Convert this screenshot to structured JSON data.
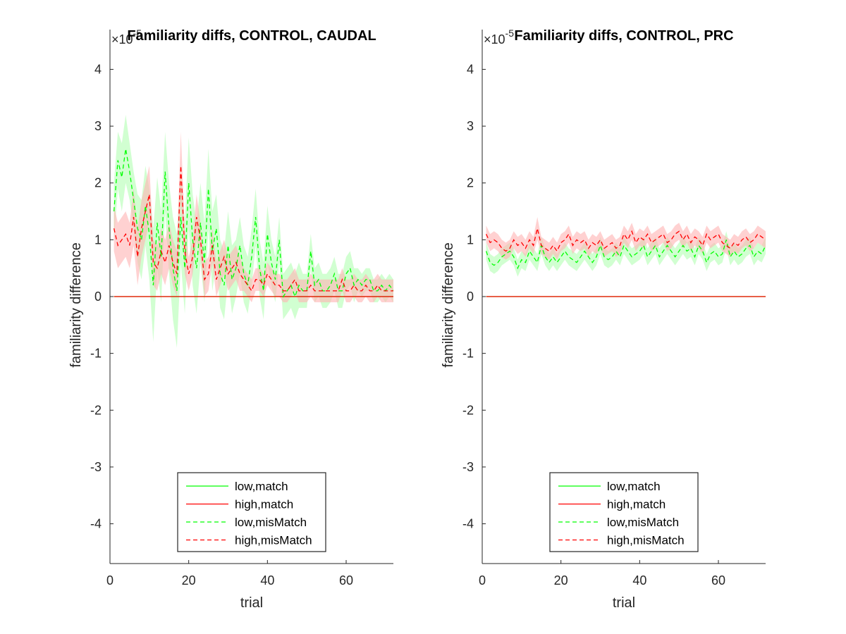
{
  "chart_data": [
    {
      "type": "line",
      "title": "Familiarity diffs, CONTROL, CAUDAL",
      "xlabel": "trial",
      "ylabel": "familiarity difference",
      "y_exponent_label": "×10",
      "y_exponent": "-5",
      "xlim": [
        0,
        72
      ],
      "ylim": [
        -4.7,
        4.7
      ],
      "x_ticks": [
        0,
        20,
        40,
        60
      ],
      "y_ticks": [
        -4,
        -3,
        -2,
        -1,
        0,
        1,
        2,
        3,
        4
      ],
      "grid": false,
      "legend_position": "bottom-center",
      "x": [
        1,
        2,
        3,
        4,
        5,
        6,
        7,
        8,
        9,
        10,
        11,
        12,
        13,
        14,
        15,
        16,
        17,
        18,
        19,
        20,
        21,
        22,
        23,
        24,
        25,
        26,
        27,
        28,
        29,
        30,
        31,
        32,
        33,
        34,
        35,
        36,
        37,
        38,
        39,
        40,
        41,
        42,
        43,
        44,
        45,
        46,
        47,
        48,
        49,
        50,
        51,
        52,
        53,
        54,
        55,
        56,
        57,
        58,
        59,
        60,
        61,
        62,
        63,
        64,
        65,
        66,
        67,
        68,
        69,
        70,
        71,
        72
      ],
      "series": [
        {
          "name": "low,match",
          "color": "#00ff00",
          "dash": "solid",
          "values": [
            0,
            0,
            0,
            0,
            0,
            0,
            0,
            0,
            0,
            0,
            0,
            0,
            0,
            0,
            0,
            0,
            0,
            0,
            0,
            0,
            0,
            0,
            0,
            0,
            0,
            0,
            0,
            0,
            0,
            0,
            0,
            0,
            0,
            0,
            0,
            0,
            0,
            0,
            0,
            0,
            0,
            0,
            0,
            0,
            0,
            0,
            0,
            0,
            0,
            0,
            0,
            0,
            0,
            0,
            0,
            0,
            0,
            0,
            0,
            0,
            0,
            0,
            0,
            0,
            0,
            0,
            0,
            0,
            0,
            0,
            0,
            0
          ]
        },
        {
          "name": "high,match",
          "color": "#ff0000",
          "dash": "solid",
          "values": [
            0,
            0,
            0,
            0,
            0,
            0,
            0,
            0,
            0,
            0,
            0,
            0,
            0,
            0,
            0,
            0,
            0,
            0,
            0,
            0,
            0,
            0,
            0,
            0,
            0,
            0,
            0,
            0,
            0,
            0,
            0,
            0,
            0,
            0,
            0,
            0,
            0,
            0,
            0,
            0,
            0,
            0,
            0,
            0,
            0,
            0,
            0,
            0,
            0,
            0,
            0,
            0,
            0,
            0,
            0,
            0,
            0,
            0,
            0,
            0,
            0,
            0,
            0,
            0,
            0,
            0,
            0,
            0,
            0,
            0,
            0,
            0
          ]
        },
        {
          "name": "low,misMatch",
          "color": "#00ff00",
          "dash": "dashed",
          "band_color": "#b3ffb3",
          "values": [
            1.5,
            2.4,
            2.1,
            2.6,
            2.2,
            1.7,
            1.2,
            1.0,
            1.6,
            1.1,
            0.2,
            1.3,
            0.7,
            2.2,
            1.2,
            0.5,
            0.1,
            1.4,
            0.5,
            2.0,
            1.0,
            0.5,
            1.3,
            0.6,
            1.9,
            0.8,
            1.2,
            0.4,
            0.2,
            0.9,
            0.3,
            0.5,
            0.9,
            0.4,
            0.2,
            0.7,
            1.4,
            0.5,
            0.1,
            1.1,
            0.6,
            0.3,
            1.0,
            0.0,
            0.1,
            0.2,
            0.0,
            0.2,
            0.1,
            0.1,
            0.8,
            0.2,
            0.3,
            0.1,
            0.1,
            0.2,
            0.4,
            0.1,
            0.1,
            0.4,
            0.5,
            0.2,
            0.3,
            0.2,
            0.3,
            0.3,
            0.1,
            0.1,
            0.2,
            0.1,
            0.2,
            0.1
          ],
          "band": [
            0.5,
            0.5,
            0.6,
            0.6,
            0.5,
            0.5,
            0.6,
            0.7,
            0.7,
            0.8,
            1.0,
            0.8,
            0.8,
            0.7,
            0.8,
            0.9,
            1.0,
            0.8,
            0.8,
            0.8,
            0.8,
            0.8,
            0.7,
            0.7,
            0.7,
            0.7,
            0.6,
            0.6,
            0.6,
            0.6,
            0.6,
            0.5,
            0.5,
            0.5,
            0.5,
            0.5,
            0.5,
            0.5,
            0.5,
            0.5,
            0.4,
            0.4,
            0.4,
            0.4,
            0.4,
            0.4,
            0.4,
            0.4,
            0.3,
            0.3,
            0.3,
            0.3,
            0.3,
            0.3,
            0.3,
            0.3,
            0.3,
            0.3,
            0.3,
            0.3,
            0.3,
            0.3,
            0.2,
            0.2,
            0.2,
            0.2,
            0.2,
            0.2,
            0.2,
            0.2,
            0.2,
            0.2
          ]
        },
        {
          "name": "high,misMatch",
          "color": "#ff0000",
          "dash": "dashed",
          "band_color": "#ffb3b3",
          "values": [
            1.2,
            0.9,
            1.0,
            1.1,
            0.9,
            1.4,
            0.7,
            1.2,
            1.5,
            1.8,
            0.6,
            0.5,
            0.8,
            0.6,
            0.9,
            0.6,
            0.4,
            2.3,
            0.8,
            0.4,
            0.7,
            1.4,
            1.0,
            0.3,
            0.4,
            0.9,
            0.3,
            0.5,
            0.7,
            0.4,
            0.5,
            0.6,
            0.4,
            0.3,
            0.2,
            0.1,
            0.3,
            0.3,
            0.2,
            0.4,
            0.3,
            0.2,
            0.2,
            0.1,
            0.1,
            0.2,
            0.3,
            0.1,
            0.1,
            0.1,
            0.2,
            0.1,
            0.1,
            0.1,
            0.1,
            0.1,
            0.1,
            0.1,
            0.3,
            0.1,
            0.1,
            0.2,
            0.1,
            0.1,
            0.2,
            0.1,
            0.1,
            0.2,
            0.1,
            0.1,
            0.1,
            0.1
          ],
          "band": [
            0.4,
            0.4,
            0.4,
            0.4,
            0.4,
            0.5,
            0.5,
            0.5,
            0.5,
            0.5,
            0.4,
            0.4,
            0.4,
            0.4,
            0.4,
            0.4,
            0.4,
            0.6,
            0.4,
            0.3,
            0.3,
            0.4,
            0.3,
            0.3,
            0.3,
            0.3,
            0.3,
            0.3,
            0.3,
            0.3,
            0.3,
            0.3,
            0.3,
            0.2,
            0.2,
            0.2,
            0.2,
            0.2,
            0.2,
            0.2,
            0.2,
            0.2,
            0.2,
            0.2,
            0.2,
            0.2,
            0.2,
            0.2,
            0.2,
            0.2,
            0.2,
            0.2,
            0.2,
            0.2,
            0.2,
            0.2,
            0.2,
            0.2,
            0.2,
            0.2,
            0.2,
            0.2,
            0.2,
            0.2,
            0.2,
            0.2,
            0.2,
            0.2,
            0.2,
            0.2,
            0.2,
            0.2
          ]
        }
      ]
    },
    {
      "type": "line",
      "title": "Familiarity diffs, CONTROL, PRC",
      "xlabel": "trial",
      "ylabel": "familiarity difference",
      "y_exponent_label": "×10",
      "y_exponent": "-5",
      "xlim": [
        0,
        72
      ],
      "ylim": [
        -4.7,
        4.7
      ],
      "x_ticks": [
        0,
        20,
        40,
        60
      ],
      "y_ticks": [
        -4,
        -3,
        -2,
        -1,
        0,
        1,
        2,
        3,
        4
      ],
      "grid": false,
      "legend_position": "bottom-center",
      "x": [
        1,
        2,
        3,
        4,
        5,
        6,
        7,
        8,
        9,
        10,
        11,
        12,
        13,
        14,
        15,
        16,
        17,
        18,
        19,
        20,
        21,
        22,
        23,
        24,
        25,
        26,
        27,
        28,
        29,
        30,
        31,
        32,
        33,
        34,
        35,
        36,
        37,
        38,
        39,
        40,
        41,
        42,
        43,
        44,
        45,
        46,
        47,
        48,
        49,
        50,
        51,
        52,
        53,
        54,
        55,
        56,
        57,
        58,
        59,
        60,
        61,
        62,
        63,
        64,
        65,
        66,
        67,
        68,
        69,
        70,
        71,
        72
      ],
      "series": [
        {
          "name": "low,match",
          "color": "#00ff00",
          "dash": "solid",
          "values": [
            0,
            0,
            0,
            0,
            0,
            0,
            0,
            0,
            0,
            0,
            0,
            0,
            0,
            0,
            0,
            0,
            0,
            0,
            0,
            0,
            0,
            0,
            0,
            0,
            0,
            0,
            0,
            0,
            0,
            0,
            0,
            0,
            0,
            0,
            0,
            0,
            0,
            0,
            0,
            0,
            0,
            0,
            0,
            0,
            0,
            0,
            0,
            0,
            0,
            0,
            0,
            0,
            0,
            0,
            0,
            0,
            0,
            0,
            0,
            0,
            0,
            0,
            0,
            0,
            0,
            0,
            0,
            0,
            0,
            0,
            0,
            0
          ]
        },
        {
          "name": "high,match",
          "color": "#ff0000",
          "dash": "solid",
          "values": [
            0,
            0,
            0,
            0,
            0,
            0,
            0,
            0,
            0,
            0,
            0,
            0,
            0,
            0,
            0,
            0,
            0,
            0,
            0,
            0,
            0,
            0,
            0,
            0,
            0,
            0,
            0,
            0,
            0,
            0,
            0,
            0,
            0,
            0,
            0,
            0,
            0,
            0,
            0,
            0,
            0,
            0,
            0,
            0,
            0,
            0,
            0,
            0,
            0,
            0,
            0,
            0,
            0,
            0,
            0,
            0,
            0,
            0,
            0,
            0,
            0,
            0,
            0,
            0,
            0,
            0,
            0,
            0,
            0,
            0,
            0,
            0
          ]
        },
        {
          "name": "low,misMatch",
          "color": "#00ff00",
          "dash": "dashed",
          "band_color": "#b3ffb3",
          "values": [
            0.8,
            0.6,
            0.55,
            0.6,
            0.7,
            0.75,
            0.8,
            0.7,
            0.5,
            0.65,
            0.6,
            0.8,
            0.7,
            0.6,
            0.9,
            0.7,
            0.6,
            0.7,
            0.6,
            0.7,
            0.8,
            0.7,
            0.65,
            0.6,
            0.7,
            0.8,
            0.7,
            0.6,
            0.7,
            0.9,
            0.7,
            0.65,
            0.7,
            0.8,
            0.7,
            0.9,
            0.8,
            0.7,
            0.75,
            0.8,
            0.9,
            0.7,
            0.8,
            0.9,
            0.7,
            0.8,
            0.9,
            0.8,
            0.7,
            0.8,
            0.9,
            0.8,
            0.85,
            0.7,
            0.9,
            0.8,
            0.6,
            0.75,
            0.8,
            0.7,
            0.75,
            1.0,
            0.7,
            0.8,
            0.7,
            0.75,
            0.85,
            0.9,
            0.7,
            0.8,
            0.75,
            0.9
          ],
          "band": [
            0.15,
            0.15,
            0.15,
            0.15,
            0.15,
            0.15,
            0.15,
            0.15,
            0.15,
            0.15,
            0.15,
            0.15,
            0.15,
            0.15,
            0.15,
            0.15,
            0.15,
            0.15,
            0.15,
            0.15,
            0.15,
            0.15,
            0.15,
            0.15,
            0.15,
            0.15,
            0.15,
            0.15,
            0.15,
            0.15,
            0.15,
            0.15,
            0.15,
            0.15,
            0.15,
            0.15,
            0.15,
            0.15,
            0.15,
            0.15,
            0.15,
            0.15,
            0.15,
            0.15,
            0.15,
            0.15,
            0.15,
            0.15,
            0.15,
            0.15,
            0.15,
            0.15,
            0.15,
            0.15,
            0.15,
            0.15,
            0.15,
            0.15,
            0.15,
            0.15,
            0.15,
            0.15,
            0.15,
            0.15,
            0.15,
            0.15,
            0.15,
            0.15,
            0.15,
            0.15,
            0.15,
            0.15
          ]
        },
        {
          "name": "high,misMatch",
          "color": "#ff0000",
          "dash": "dashed",
          "band_color": "#ffb3b3",
          "values": [
            1.1,
            0.95,
            1.0,
            0.95,
            0.85,
            0.8,
            0.85,
            1.0,
            0.9,
            0.95,
            0.85,
            1.0,
            0.9,
            1.2,
            0.9,
            0.85,
            0.8,
            0.9,
            0.8,
            0.95,
            1.0,
            1.1,
            0.9,
            1.0,
            0.95,
            1.0,
            0.85,
            0.95,
            0.9,
            1.0,
            0.85,
            0.9,
            0.95,
            0.85,
            0.9,
            1.1,
            1.0,
            1.15,
            0.95,
            1.05,
            1.0,
            1.1,
            0.95,
            1.0,
            1.05,
            1.1,
            0.95,
            1.0,
            1.1,
            1.15,
            1.0,
            1.1,
            0.95,
            1.05,
            1.0,
            0.9,
            1.1,
            1.0,
            1.05,
            1.1,
            0.95,
            0.9,
            0.85,
            0.95,
            0.9,
            1.0,
            1.05,
            0.95,
            1.0,
            1.1,
            1.05,
            1.0
          ],
          "band": [
            0.15,
            0.15,
            0.15,
            0.15,
            0.15,
            0.15,
            0.15,
            0.15,
            0.15,
            0.15,
            0.15,
            0.15,
            0.15,
            0.2,
            0.15,
            0.15,
            0.15,
            0.15,
            0.15,
            0.15,
            0.15,
            0.15,
            0.15,
            0.15,
            0.15,
            0.15,
            0.15,
            0.15,
            0.15,
            0.15,
            0.15,
            0.15,
            0.15,
            0.15,
            0.15,
            0.15,
            0.15,
            0.15,
            0.15,
            0.15,
            0.15,
            0.15,
            0.15,
            0.15,
            0.15,
            0.15,
            0.15,
            0.15,
            0.15,
            0.15,
            0.15,
            0.15,
            0.15,
            0.15,
            0.15,
            0.15,
            0.15,
            0.15,
            0.15,
            0.15,
            0.15,
            0.15,
            0.15,
            0.15,
            0.15,
            0.15,
            0.15,
            0.15,
            0.15,
            0.15,
            0.15,
            0.15
          ]
        }
      ]
    }
  ]
}
